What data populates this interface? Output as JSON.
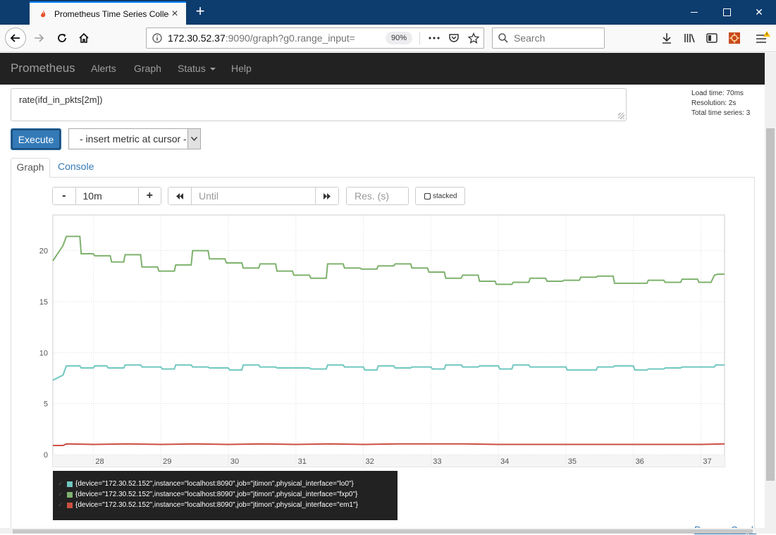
{
  "browser": {
    "tab_title": "Prometheus Time Series Collection and Processing Server",
    "url_host": "172.30.52.37",
    "url_rest": ":9090/graph?g0.range_input=",
    "zoom": "90%",
    "search_placeholder": "Search"
  },
  "app": {
    "brand": "Prometheus",
    "nav": [
      "Alerts",
      "Graph",
      "Status",
      "Help"
    ]
  },
  "query": {
    "expression": "rate(ifd_in_pkts[2m])",
    "load_time": "Load time: 70ms",
    "resolution": "Resolution: 2s",
    "total_series": "Total time series: 3",
    "execute_label": "Execute",
    "insert_metric_label": "- insert metric at cursor -"
  },
  "tabs": {
    "graph": "Graph",
    "console": "Console"
  },
  "controls": {
    "range_minus": "-",
    "range_value": "10m",
    "range_plus": "+",
    "until_placeholder": "Until",
    "res_placeholder": "Res. (s)",
    "stacked_label": "stacked"
  },
  "chart_data": {
    "type": "line",
    "xlabel": "",
    "ylabel": "",
    "x_tick_labels": [
      "28",
      "29",
      "30",
      "31",
      "32",
      "33",
      "34",
      "35",
      "36",
      "37"
    ],
    "y_tick_labels": [
      "0",
      "5",
      "10",
      "15",
      "20"
    ],
    "ylim": [
      0,
      23.5
    ],
    "xlim": [
      27.4,
      37.35
    ],
    "grid": true,
    "series": [
      {
        "name": "{device=\"172.30.52.152\",instance=\"localhost:8090\",job=\"jtimon\",physical_interface=\"lo0\"}",
        "color": "#70c7c0",
        "x": [
          27.4,
          27.55,
          27.6,
          27.8,
          27.82,
          28.0,
          28.02,
          28.2,
          28.22,
          28.45,
          28.47,
          28.7,
          28.72,
          29.0,
          29.02,
          29.2,
          29.22,
          29.45,
          29.47,
          29.7,
          29.72,
          30.0,
          30.02,
          30.2,
          30.22,
          30.45,
          30.47,
          30.7,
          30.72,
          31.0,
          31.02,
          31.2,
          31.22,
          31.45,
          31.47,
          31.7,
          31.72,
          32.0,
          32.02,
          32.2,
          32.22,
          32.45,
          32.47,
          32.7,
          32.72,
          33.0,
          33.02,
          33.2,
          33.22,
          33.45,
          33.47,
          33.7,
          33.72,
          34.0,
          34.02,
          34.2,
          34.22,
          34.45,
          34.47,
          34.7,
          34.72,
          35.0,
          35.02,
          35.2,
          35.22,
          35.45,
          35.47,
          35.7,
          35.72,
          36.0,
          36.02,
          36.2,
          36.22,
          36.45,
          36.47,
          36.7,
          36.72,
          37.0,
          37.02,
          37.2,
          37.22,
          37.35
        ],
        "values": [
          7.3,
          7.8,
          8.7,
          8.7,
          8.5,
          8.5,
          8.7,
          8.7,
          8.5,
          8.5,
          8.8,
          8.8,
          8.6,
          8.6,
          8.4,
          8.4,
          8.8,
          8.8,
          8.6,
          8.6,
          8.5,
          8.5,
          8.3,
          8.3,
          8.8,
          8.8,
          8.6,
          8.6,
          8.5,
          8.5,
          8.5,
          8.5,
          8.4,
          8.4,
          8.8,
          8.8,
          8.6,
          8.6,
          8.3,
          8.3,
          8.7,
          8.7,
          8.5,
          8.5,
          8.6,
          8.6,
          8.4,
          8.4,
          8.8,
          8.8,
          8.6,
          8.6,
          8.7,
          8.7,
          8.4,
          8.4,
          8.8,
          8.8,
          8.6,
          8.6,
          8.6,
          8.6,
          8.3,
          8.3,
          8.3,
          8.3,
          8.6,
          8.6,
          8.7,
          8.7,
          8.3,
          8.3,
          8.4,
          8.4,
          8.5,
          8.5,
          8.6,
          8.6,
          8.6,
          8.6,
          8.8,
          8.8
        ]
      },
      {
        "name": "{device=\"172.30.52.152\",instance=\"localhost:8090\",job=\"jtimon\",physical_interface=\"fxp0\"}",
        "color": "#7eb26d",
        "x": [
          27.4,
          27.55,
          27.6,
          27.8,
          27.82,
          28.0,
          28.02,
          28.25,
          28.27,
          28.45,
          28.47,
          28.7,
          28.72,
          28.95,
          28.97,
          29.2,
          29.22,
          29.45,
          29.47,
          29.7,
          29.72,
          29.95,
          29.97,
          30.2,
          30.22,
          30.45,
          30.47,
          30.7,
          30.72,
          30.95,
          30.97,
          31.2,
          31.22,
          31.45,
          31.47,
          31.7,
          31.72,
          31.95,
          31.97,
          32.2,
          32.22,
          32.45,
          32.47,
          32.7,
          32.72,
          32.95,
          32.97,
          33.2,
          33.22,
          33.45,
          33.47,
          33.7,
          33.72,
          33.95,
          33.97,
          34.2,
          34.22,
          34.45,
          34.47,
          34.7,
          34.72,
          34.95,
          34.97,
          35.2,
          35.22,
          35.45,
          35.47,
          35.7,
          35.72,
          35.95,
          35.97,
          36.2,
          36.22,
          36.45,
          36.47,
          36.7,
          36.72,
          36.95,
          36.97,
          37.15,
          37.2,
          37.25,
          37.35
        ],
        "values": [
          19.0,
          20.5,
          21.4,
          21.4,
          19.7,
          19.7,
          19.5,
          19.5,
          18.9,
          18.9,
          19.6,
          19.6,
          18.4,
          18.4,
          18.0,
          18.0,
          18.6,
          18.6,
          20.0,
          20.0,
          19.2,
          19.2,
          18.8,
          18.8,
          18.3,
          18.3,
          18.7,
          18.7,
          18.0,
          18.0,
          17.6,
          17.6,
          17.3,
          17.3,
          18.7,
          18.7,
          18.3,
          18.3,
          18.2,
          18.2,
          18.5,
          18.5,
          18.7,
          18.7,
          18.3,
          18.3,
          17.9,
          17.9,
          17.3,
          17.3,
          17.6,
          17.6,
          17.0,
          17.0,
          16.7,
          16.7,
          16.9,
          16.9,
          17.3,
          17.3,
          17.0,
          17.0,
          17.1,
          17.1,
          17.4,
          17.4,
          17.5,
          17.5,
          16.8,
          16.8,
          16.8,
          16.8,
          17.1,
          17.1,
          16.9,
          16.9,
          17.2,
          17.2,
          16.9,
          16.9,
          17.6,
          17.7,
          17.7
        ]
      },
      {
        "name": "{device=\"172.30.52.152\",instance=\"localhost:8090\",job=\"jtimon\",physical_interface=\"em1\"}",
        "color": "#cc4f42",
        "x": [
          27.4,
          27.55,
          27.6,
          28.0,
          28.5,
          29.0,
          29.5,
          30.0,
          30.5,
          31.0,
          31.5,
          32.0,
          32.5,
          33.0,
          33.5,
          34.0,
          34.5,
          35.0,
          35.5,
          36.0,
          36.5,
          37.0,
          37.35
        ],
        "values": [
          0.9,
          0.9,
          1.05,
          1.0,
          1.05,
          1.0,
          1.05,
          1.0,
          1.05,
          1.0,
          1.05,
          1.0,
          1.05,
          1.05,
          1.05,
          1.0,
          1.0,
          1.0,
          1.0,
          1.0,
          1.0,
          1.0,
          1.05
        ]
      }
    ]
  },
  "footer": {
    "remove_graph": "Remove Graph"
  }
}
